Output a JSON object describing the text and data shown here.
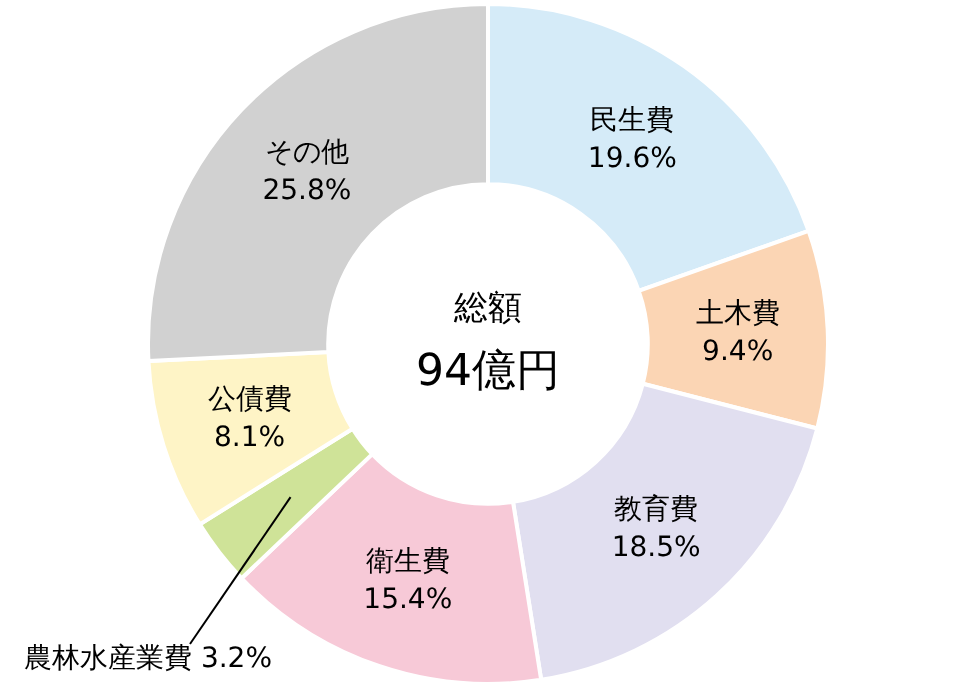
{
  "chart_data": {
    "type": "donut",
    "categories": [
      "民生費",
      "土木費",
      "教育費",
      "衛生費",
      "農林水産業費",
      "公債費",
      "その他"
    ],
    "values": [
      19.6,
      9.4,
      18.5,
      15.4,
      3.2,
      8.1,
      25.8
    ],
    "value_labels": [
      "19.6%",
      "9.4%",
      "18.5%",
      "15.4%",
      "3.2%",
      "8.1%",
      "25.8%"
    ],
    "colors": [
      "#d5ebf8",
      "#fbd5b4",
      "#e1dff0",
      "#f7c9d7",
      "#cfe398",
      "#fef4c6",
      "#d1d1d1"
    ],
    "annotations": [
      "総額",
      "94億円"
    ],
    "legend": false
  }
}
